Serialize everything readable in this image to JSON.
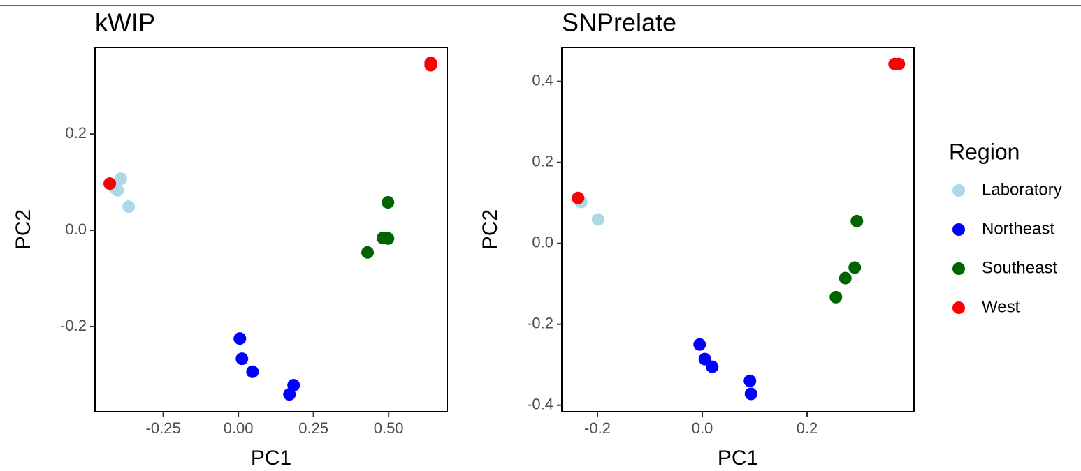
{
  "chart_data": [
    {
      "type": "scatter",
      "title": "kWIP",
      "xlabel": "PC1",
      "ylabel": "PC2",
      "xlim": [
        -0.477,
        0.695
      ],
      "ylim": [
        -0.377,
        0.38
      ],
      "xticks": [
        -0.25,
        {
          "value": 0,
          "label": "0.00"
        },
        0.25,
        {
          "value": 0.5,
          "label": "0.50"
        }
      ],
      "yticks": [
        -0.2,
        {
          "value": 0,
          "label": "0.0"
        },
        0.2
      ],
      "series": [
        {
          "name": "Laboratory",
          "color": "#add8e6",
          "x": [
            -0.391,
            -0.402,
            -0.414,
            -0.365
          ],
          "values": [
            0.107,
            0.083,
            0.09,
            0.049
          ]
        },
        {
          "name": "Northeast",
          "color": "#0000ff",
          "x": [
            0.005,
            0.012,
            0.047,
            0.184,
            0.17
          ],
          "values": [
            -0.225,
            -0.267,
            -0.294,
            -0.322,
            -0.341
          ]
        },
        {
          "name": "Southeast",
          "color": "#006400",
          "x": [
            0.498,
            0.481,
            0.498,
            0.43
          ],
          "values": [
            0.058,
            -0.016,
            -0.017,
            -0.046
          ]
        },
        {
          "name": "West",
          "color": "#ff0000",
          "x": [
            -0.428,
            0.64,
            0.64
          ],
          "values": [
            0.097,
            0.348,
            0.343
          ]
        }
      ]
    },
    {
      "type": "scatter",
      "title": "SNPrelate",
      "xlabel": "PC1",
      "ylabel": "PC2",
      "xlim": [
        -0.268,
        0.404
      ],
      "ylim": [
        -0.416,
        0.484
      ],
      "xticks": [
        -0.2,
        {
          "value": 0,
          "label": "0.0"
        },
        0.2
      ],
      "yticks": [
        -0.4,
        -0.2,
        {
          "value": 0,
          "label": "0.0"
        },
        0.2,
        0.4
      ],
      "legend_title": "Region",
      "legend": "right",
      "series": [
        {
          "name": "Laboratory",
          "color": "#add8e6",
          "x": [
            -0.231,
            -0.199
          ],
          "values": [
            0.102,
            0.059
          ]
        },
        {
          "name": "Northeast",
          "color": "#0000ff",
          "x": [
            -0.005,
            0.005,
            0.019,
            0.091,
            0.093
          ],
          "values": [
            -0.25,
            -0.286,
            -0.305,
            -0.34,
            -0.372
          ]
        },
        {
          "name": "Southeast",
          "color": "#006400",
          "x": [
            0.295,
            0.291,
            0.273,
            0.255
          ],
          "values": [
            0.055,
            -0.06,
            -0.086,
            -0.133
          ]
        },
        {
          "name": "West",
          "color": "#ff0000",
          "x": [
            -0.237,
            0.367,
            0.375
          ],
          "values": [
            0.112,
            0.443,
            0.443
          ]
        }
      ]
    }
  ]
}
